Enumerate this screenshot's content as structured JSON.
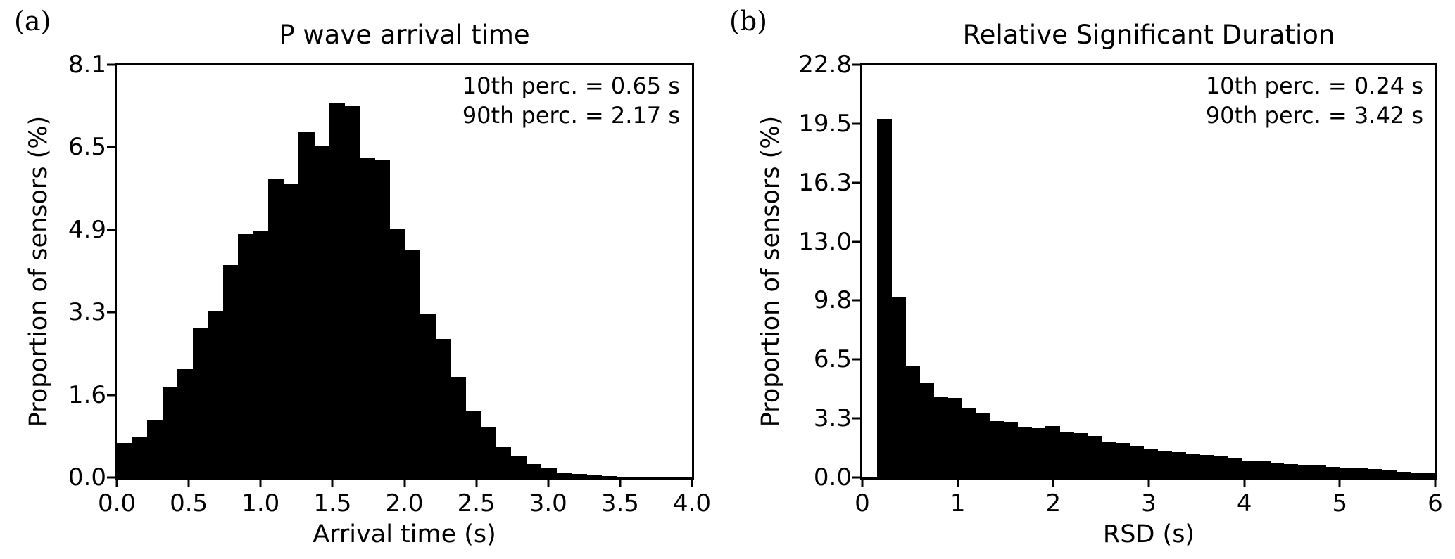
{
  "figure": {
    "background_color": "#ffffff",
    "bar_color": "#000000",
    "text_color": "#000000"
  },
  "panel_a": {
    "panel_label": "(a)",
    "title": "P wave arrival time",
    "ylabel": "Proportion of sensors (%)",
    "xlabel": "Arrival time (s)",
    "annotation_line1": "10th perc. = 0.65 s",
    "annotation_line2": "90th perc. = 2.17 s"
  },
  "panel_b": {
    "panel_label": "(b)",
    "title": "Relative Significant Duration",
    "ylabel": "Proportion of sensors (%)",
    "xlabel": "RSD (s)",
    "annotation_line1": "10th perc. = 0.24 s",
    "annotation_line2": "90th perc. = 3.42 s"
  },
  "chart_data": [
    {
      "type": "bar",
      "subtype": "histogram",
      "panel": "a",
      "title": "P wave arrival time",
      "xlabel": "Arrival time (s)",
      "ylabel": "Proportion of sensors (%)",
      "xlim": [
        0.0,
        4.0
      ],
      "ylim": [
        0.0,
        8.1
      ],
      "grid": false,
      "bin_start": 0.0,
      "bin_width": 0.1053,
      "values": [
        0.67,
        0.78,
        1.13,
        1.76,
        2.12,
        2.94,
        3.25,
        4.17,
        4.78,
        4.85,
        5.85,
        5.76,
        6.78,
        6.5,
        7.35,
        7.28,
        6.28,
        6.24,
        4.89,
        4.47,
        3.22,
        2.72,
        1.98,
        1.3,
        1.0,
        0.6,
        0.42,
        0.26,
        0.18,
        0.1,
        0.07,
        0.05,
        0.03,
        0.02,
        0,
        0,
        0,
        0
      ],
      "x_tick_labels": [
        "0.0",
        "0.5",
        "1.0",
        "1.5",
        "2.0",
        "2.5",
        "3.0",
        "3.5",
        "4.0"
      ],
      "y_tick_labels": [
        "0.0",
        "1.6",
        "3.3",
        "4.9",
        "6.5",
        "8.1"
      ],
      "annotations": [
        "10th perc. = 0.65 s",
        "90th perc. = 2.17 s"
      ],
      "percentile_10_s": 0.65,
      "percentile_90_s": 2.17
    },
    {
      "type": "bar",
      "subtype": "histogram",
      "panel": "b",
      "title": "Relative Significant Duration",
      "xlabel": "RSD (s)",
      "ylabel": "Proportion of sensors (%)",
      "xlim": [
        0.0,
        6.0
      ],
      "ylim": [
        0.0,
        22.8
      ],
      "grid": false,
      "bin_start": 0.157,
      "bin_width": 0.1467,
      "values": [
        19.8,
        10.0,
        6.15,
        5.25,
        4.45,
        4.4,
        3.85,
        3.55,
        3.1,
        3.05,
        2.8,
        2.75,
        2.85,
        2.5,
        2.45,
        2.3,
        2.0,
        1.9,
        1.75,
        1.6,
        1.45,
        1.4,
        1.3,
        1.25,
        1.15,
        1.05,
        0.95,
        0.9,
        0.8,
        0.75,
        0.7,
        0.65,
        0.6,
        0.55,
        0.5,
        0.45,
        0.4,
        0.33,
        0.27,
        0.23
      ],
      "x_tick_labels": [
        "0",
        "1",
        "2",
        "3",
        "4",
        "5",
        "6"
      ],
      "y_tick_labels": [
        "0.0",
        "3.3",
        "6.5",
        "9.8",
        "13.0",
        "16.3",
        "19.5",
        "22.8"
      ],
      "annotations": [
        "10th perc. = 0.24 s",
        "90th perc. = 3.42 s"
      ],
      "percentile_10_s": 0.24,
      "percentile_90_s": 3.42
    }
  ]
}
